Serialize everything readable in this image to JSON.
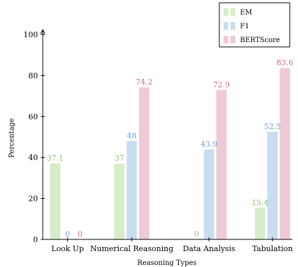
{
  "chart_data": {
    "type": "bar",
    "title": "",
    "xlabel": "Reasoning Types",
    "ylabel": "Percentage",
    "ylim": [
      0,
      100
    ],
    "yticks": [
      0,
      20,
      40,
      60,
      80,
      100
    ],
    "categories": [
      "Look Up",
      "Numerical Reasoning",
      "Data Analysis",
      "Tabulation"
    ],
    "series": [
      {
        "name": "EM",
        "color": "#d7ecc8",
        "label_color": "#8cc47a",
        "values": [
          37.1,
          37,
          0,
          15.4
        ],
        "labels": [
          "37.1",
          "37",
          "0",
          "15.4"
        ]
      },
      {
        "name": "F1",
        "color": "#c9ddf1",
        "label_color": "#6f9fd8",
        "values": [
          0,
          48,
          43.9,
          52.5
        ],
        "labels": [
          "0",
          "48",
          "43.9",
          "52.5"
        ]
      },
      {
        "name": "BERTScore",
        "color": "#eecad6",
        "label_color": "#c86a86",
        "values": [
          0,
          74.2,
          72.9,
          83.6
        ],
        "labels": [
          "0",
          "74.2",
          "72.9",
          "83.6"
        ]
      }
    ],
    "legend_position": "top-right",
    "grid": false
  }
}
